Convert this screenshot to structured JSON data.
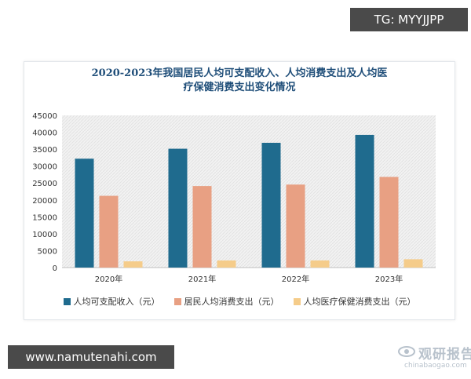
{
  "tags": {
    "top": "TG: MYYJJPP",
    "bottom": "www.namutenahi.com"
  },
  "watermark": {
    "text": "观研报告网",
    "url": "chinabaogao.com"
  },
  "colors": {
    "income": "#1f6b8e",
    "consumption": "#e8a083",
    "medical": "#f5cc8a",
    "title": "#1f4e79",
    "plot_bg": "#f0f0f0"
  },
  "chart_data": {
    "type": "bar",
    "title": "2020-2023年我国居民人均可支配收入、人均消费支出及人均医疗保健消费支出变化情况",
    "title_lines": [
      "2020-2023年我国居民人均可支配收入、人均消费支出及人均医",
      "疗保健消费支出变化情况"
    ],
    "categories": [
      "2020年",
      "2021年",
      "2022年",
      "2023年"
    ],
    "series": [
      {
        "name": "人均可支配收入（元）",
        "values": [
          32189,
          35128,
          36883,
          39218
        ]
      },
      {
        "name": "居民人均消费支出（元）",
        "values": [
          21210,
          24100,
          24538,
          26796
        ]
      },
      {
        "name": "人均医疗保健消费支出（元）",
        "values": [
          1843,
          2115,
          2120,
          2460
        ]
      }
    ],
    "ylim": [
      0,
      45000
    ],
    "yticks": [
      "0",
      "5000",
      "10000",
      "15000",
      "20000",
      "25000",
      "30000",
      "35000",
      "40000",
      "45000"
    ],
    "grid": false,
    "legend_position": "bottom"
  }
}
